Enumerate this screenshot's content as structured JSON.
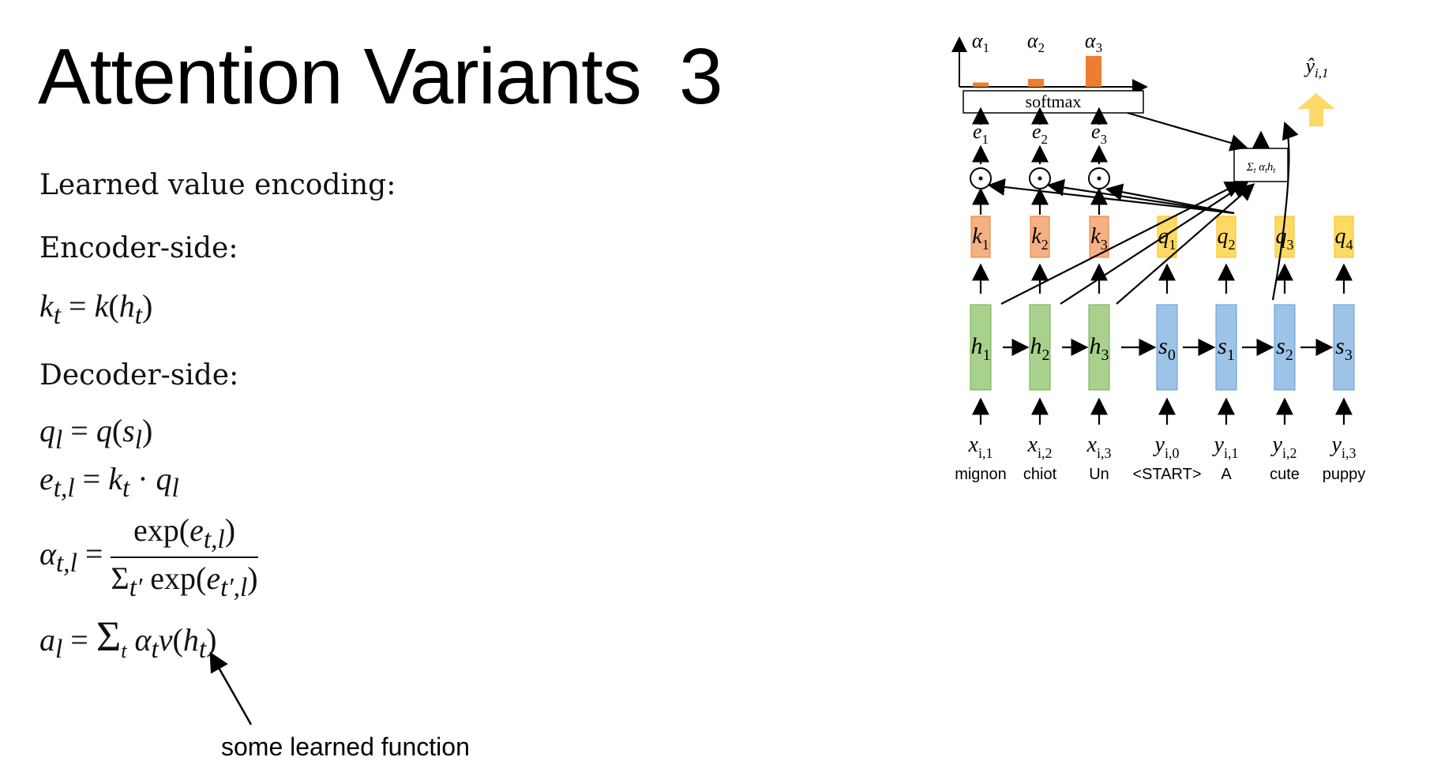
{
  "title": {
    "main": "Attention Variants",
    "number": "3"
  },
  "left": {
    "heading": "Learned value encoding:",
    "encoder_heading": "Encoder-side:",
    "eq_k": "k_t = k(h_t)",
    "decoder_heading": "Decoder-side:",
    "eq_q": "q_l = q(s_l)",
    "eq_e": "e_{t,l} = k_t · q_l",
    "eq_alpha": "α_{t,l} = exp(e_{t,l}) / Σ_{t'} exp(e_{t',l})",
    "eq_a": "a_l = Σ_t α_t v(h_t)",
    "annotation": "some learned function"
  },
  "diagram": {
    "softmax_label": "softmax",
    "sum_label": "Σ_t α_t h_t",
    "output_label": "ŷ_{i,1}",
    "alphas": [
      {
        "name": "α1",
        "sub": "1",
        "value": 0.12
      },
      {
        "name": "α2",
        "sub": "2",
        "value": 0.22
      },
      {
        "name": "α3",
        "sub": "3",
        "value": 0.85
      }
    ],
    "scores": [
      "e1",
      "e2",
      "e3"
    ],
    "keys": [
      "k1",
      "k2",
      "k3"
    ],
    "queries": [
      "q1",
      "q2",
      "q3",
      "q4"
    ],
    "encoder_states": [
      "h1",
      "h2",
      "h3"
    ],
    "decoder_states": [
      "s0",
      "s1",
      "s2",
      "s3"
    ],
    "inputs": [
      "x_{i,1}",
      "x_{i,2}",
      "x_{i,3}",
      "y_{i,0}",
      "y_{i,1}",
      "y_{i,2}",
      "y_{i,3}"
    ],
    "words": [
      "mignon",
      "chiot",
      "Un",
      "<START>",
      "A",
      "cute",
      "puppy"
    ],
    "colors": {
      "encoder": "#a9d18e",
      "encoder_border": "#70ad47",
      "decoder": "#9dc3e6",
      "decoder_border": "#5b9bd5",
      "key": "#f4b183",
      "key_border": "#ed7d31",
      "query": "#ffd966",
      "query_border": "#ffc000",
      "alpha_bar": "#ed7d31",
      "output_arrow": "#ffd966"
    }
  }
}
